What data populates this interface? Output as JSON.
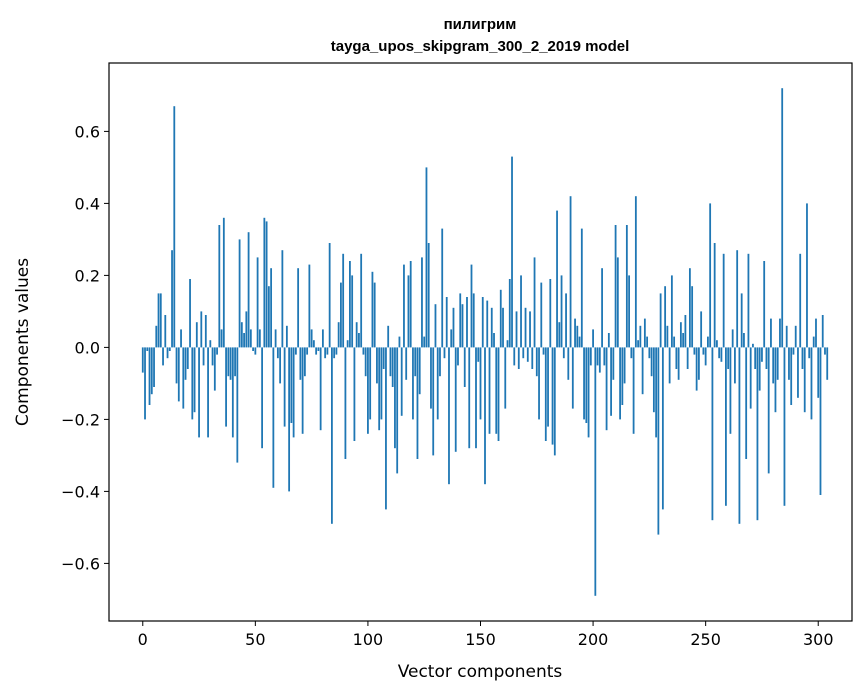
{
  "chart_data": {
    "type": "bar",
    "title": "пилигрим",
    "subtitle": "tayga_upos_skipgram_300_2_2019 model",
    "xlabel": "Vector components",
    "ylabel": "Components values",
    "xlim": [
      -15,
      315
    ],
    "ylim": [
      -0.76,
      0.79
    ],
    "xticks": [
      0,
      50,
      100,
      150,
      200,
      250,
      300
    ],
    "yticks": [
      -0.6,
      -0.4,
      -0.2,
      0.0,
      0.2,
      0.4,
      0.6
    ],
    "xtick_labels": [
      "0",
      "50",
      "100",
      "150",
      "200",
      "250",
      "300"
    ],
    "ytick_labels": [
      "−0.6",
      "−0.4",
      "−0.2",
      "0.0",
      "0.2",
      "0.4",
      "0.6"
    ],
    "bar_color": "#1f77b4",
    "grid": false,
    "values": [
      -0.07,
      -0.2,
      -0.01,
      -0.16,
      -0.13,
      -0.11,
      0.06,
      0.15,
      0.15,
      -0.05,
      0.09,
      -0.03,
      -0.01,
      0.27,
      0.67,
      -0.1,
      -0.15,
      0.05,
      -0.17,
      -0.09,
      -0.06,
      0.19,
      -0.2,
      -0.18,
      0.07,
      -0.25,
      0.1,
      -0.05,
      0.09,
      -0.25,
      0.02,
      -0.05,
      -0.12,
      -0.02,
      0.34,
      0.05,
      0.36,
      -0.22,
      -0.08,
      -0.09,
      -0.25,
      -0.08,
      -0.32,
      0.3,
      0.07,
      0.04,
      0.1,
      0.32,
      0.05,
      -0.01,
      -0.02,
      0.25,
      0.05,
      -0.28,
      0.36,
      0.35,
      0.17,
      0.22,
      -0.39,
      0.05,
      -0.03,
      -0.1,
      0.27,
      -0.22,
      0.06,
      -0.4,
      -0.21,
      -0.25,
      -0.02,
      0.22,
      -0.09,
      -0.24,
      -0.08,
      -0.02,
      0.23,
      0.05,
      0.02,
      -0.02,
      -0.01,
      -0.23,
      0.05,
      -0.03,
      -0.02,
      0.29,
      -0.49,
      -0.03,
      -0.02,
      0.07,
      0.18,
      0.26,
      -0.31,
      0.02,
      0.24,
      0.2,
      -0.26,
      0.07,
      0.04,
      0.26,
      -0.02,
      -0.08,
      -0.24,
      -0.2,
      0.21,
      0.18,
      -0.1,
      -0.23,
      -0.2,
      -0.06,
      -0.45,
      0.06,
      -0.08,
      -0.11,
      -0.28,
      -0.35,
      0.03,
      -0.19,
      0.23,
      -0.09,
      0.2,
      0.24,
      -0.2,
      -0.08,
      -0.31,
      -0.13,
      0.25,
      0.03,
      0.5,
      0.29,
      -0.17,
      -0.3,
      0.12,
      -0.2,
      -0.08,
      0.33,
      -0.03,
      0.14,
      -0.38,
      0.05,
      0.11,
      -0.29,
      -0.05,
      0.15,
      0.12,
      -0.11,
      0.14,
      -0.28,
      0.23,
      0.15,
      -0.28,
      -0.04,
      -0.2,
      0.14,
      -0.38,
      0.13,
      -0.24,
      0.11,
      0.04,
      -0.24,
      -0.26,
      0.16,
      0.11,
      -0.17,
      0.02,
      0.19,
      0.53,
      -0.05,
      0.1,
      -0.06,
      0.2,
      -0.03,
      0.11,
      -0.04,
      0.1,
      -0.06,
      0.25,
      -0.08,
      -0.2,
      0.18,
      -0.02,
      -0.26,
      -0.22,
      0.19,
      -0.27,
      -0.3,
      0.38,
      0.07,
      0.2,
      -0.03,
      0.15,
      -0.09,
      0.42,
      -0.17,
      0.08,
      0.06,
      0.03,
      0.33,
      -0.2,
      -0.21,
      -0.25,
      -0.05,
      0.05,
      -0.69,
      -0.05,
      -0.07,
      0.22,
      -0.05,
      -0.23,
      0.04,
      -0.19,
      -0.09,
      0.34,
      0.25,
      -0.2,
      -0.16,
      -0.1,
      0.34,
      0.2,
      -0.03,
      -0.24,
      0.42,
      0.02,
      0.06,
      -0.13,
      0.08,
      0.03,
      -0.03,
      -0.08,
      -0.18,
      -0.25,
      -0.52,
      0.15,
      -0.45,
      0.17,
      0.06,
      -0.1,
      0.2,
      0.03,
      -0.06,
      -0.09,
      0.07,
      0.04,
      0.09,
      -0.06,
      0.22,
      0.17,
      -0.02,
      -0.12,
      -0.09,
      0.1,
      -0.02,
      -0.05,
      0.03,
      0.4,
      -0.48,
      0.29,
      0.02,
      -0.03,
      -0.04,
      0.26,
      -0.44,
      -0.06,
      -0.24,
      0.05,
      -0.1,
      0.27,
      -0.49,
      0.15,
      0.04,
      -0.31,
      0.26,
      -0.17,
      0.01,
      -0.06,
      -0.48,
      -0.12,
      -0.04,
      0.24,
      -0.06,
      -0.35,
      0.08,
      -0.1,
      -0.18,
      -0.09,
      0.08,
      0.72,
      -0.44,
      0.06,
      -0.09,
      -0.16,
      -0.02,
      0.06,
      -0.14,
      0.26,
      -0.06,
      -0.18,
      0.4,
      -0.03,
      -0.2,
      0.03,
      0.08,
      -0.14,
      -0.41,
      0.09,
      -0.02,
      -0.09
    ]
  }
}
